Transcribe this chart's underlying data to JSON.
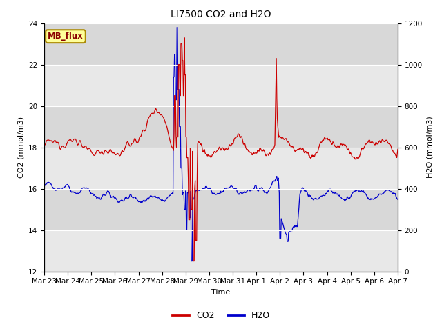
{
  "title": "LI7500 CO2 and H2O",
  "xlabel": "Time",
  "ylabel_left": "CO2 (mmol/m3)",
  "ylabel_right": "H2O (mmol/m3)",
  "ylim_left": [
    12,
    24
  ],
  "ylim_right": [
    0,
    1200
  ],
  "yticks_left": [
    12,
    14,
    16,
    18,
    20,
    22,
    24
  ],
  "yticks_right": [
    0,
    200,
    400,
    600,
    800,
    1000,
    1200
  ],
  "x_labels": [
    "Mar 23",
    "Mar 24",
    "Mar 25",
    "Mar 26",
    "Mar 27",
    "Mar 28",
    "Mar 29",
    "Mar 30",
    "Mar 31",
    "Apr 1",
    "Apr 2",
    "Apr 3",
    "Apr 4",
    "Apr 5",
    "Apr 6",
    "Apr 7"
  ],
  "legend_co2": "CO2",
  "legend_h2o": "H2O",
  "co2_color": "#cc0000",
  "h2o_color": "#0000cc",
  "bg_outer": "#d8d8d8",
  "bg_inner": "#e8e8e8",
  "annotation_text": "MB_flux",
  "annotation_bg": "#ffff99",
  "annotation_border": "#aa8800",
  "grid_color": "#ffffff",
  "title_fontsize": 10,
  "label_fontsize": 8,
  "tick_fontsize": 7.5
}
